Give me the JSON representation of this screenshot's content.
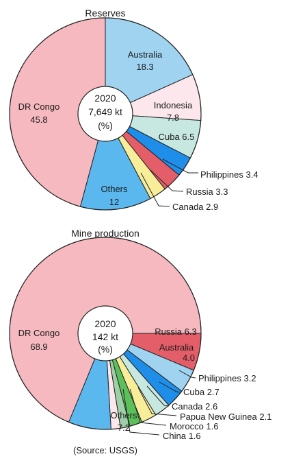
{
  "source_note": "(Source: USGS)",
  "chart_data": [
    {
      "type": "pie",
      "variant": "donut",
      "title": "Reserves",
      "center_label": [
        "2020",
        "7,649 kt",
        "(%)"
      ],
      "start": "12 o'clock, clockwise",
      "slices": [
        {
          "label": "Australia",
          "value": 18.3,
          "color": "#9fd3f0",
          "text": [
            "Australia",
            "18.3"
          ]
        },
        {
          "label": "Indonesia",
          "value": 7.8,
          "color": "#fbe7ec",
          "text": [
            "Indonesia",
            "7.8"
          ]
        },
        {
          "label": "Cuba",
          "value": 6.5,
          "color": "#c7e8e0",
          "text": [
            "Cuba 6.5"
          ]
        },
        {
          "label": "Philippines",
          "value": 3.4,
          "color": "#1f8ee8",
          "text": [
            "Philippines 3.4"
          ]
        },
        {
          "label": "Russia",
          "value": 3.3,
          "color": "#e45e6a",
          "text": [
            "Russia 3.3"
          ]
        },
        {
          "label": "Canada",
          "value": 2.9,
          "color": "#f8ee9a",
          "text": [
            "Canada 2.9"
          ]
        },
        {
          "label": "Others",
          "value": 12,
          "color": "#5ab8ee",
          "text": [
            "Others",
            "12"
          ]
        },
        {
          "label": "DR Congo",
          "value": 45.8,
          "color": "#f5b9bf",
          "text": [
            "DR Congo",
            "45.8"
          ]
        }
      ]
    },
    {
      "type": "pie",
      "variant": "donut",
      "title": "Mine production",
      "center_label": [
        "2020",
        "142 kt",
        "(%)"
      ],
      "start": "3 o'clock, counterclockwise for Russia; remaining clockwise",
      "slices": [
        {
          "label": "Russia",
          "value": 6.3,
          "color": "#e45e6a",
          "text": [
            "Russia 6.3"
          ]
        },
        {
          "label": "Australia",
          "value": 4.0,
          "color": "#9fd3f0",
          "text": [
            "Australia",
            "4.0"
          ]
        },
        {
          "label": "Philippines",
          "value": 3.2,
          "color": "#1f8ee8",
          "text": [
            "Philippines 3.2"
          ]
        },
        {
          "label": "Cuba",
          "value": 2.7,
          "color": "#c7e8e0",
          "text": [
            "Cuba 2.7"
          ]
        },
        {
          "label": "Canada",
          "value": 2.6,
          "color": "#f8ee9a",
          "text": [
            "Canada 2.6"
          ]
        },
        {
          "label": "Papua New Guinea",
          "value": 2.1,
          "color": "#5cc05a",
          "text": [
            "Papua New Guinea 2.1"
          ]
        },
        {
          "label": "Morocco",
          "value": 1.6,
          "color": "#9fcfa8",
          "text": [
            "Morocco 1.6"
          ]
        },
        {
          "label": "China",
          "value": 1.6,
          "color": "#fbe7ec",
          "text": [
            "China 1.6"
          ]
        },
        {
          "label": "Others",
          "value": 7.2,
          "color": "#5ab8ee",
          "text": [
            "Others",
            "7.2"
          ]
        },
        {
          "label": "DR Congo",
          "value": 68.9,
          "color": "#f5b9bf",
          "text": [
            "DR Congo",
            "68.9"
          ]
        }
      ]
    }
  ]
}
